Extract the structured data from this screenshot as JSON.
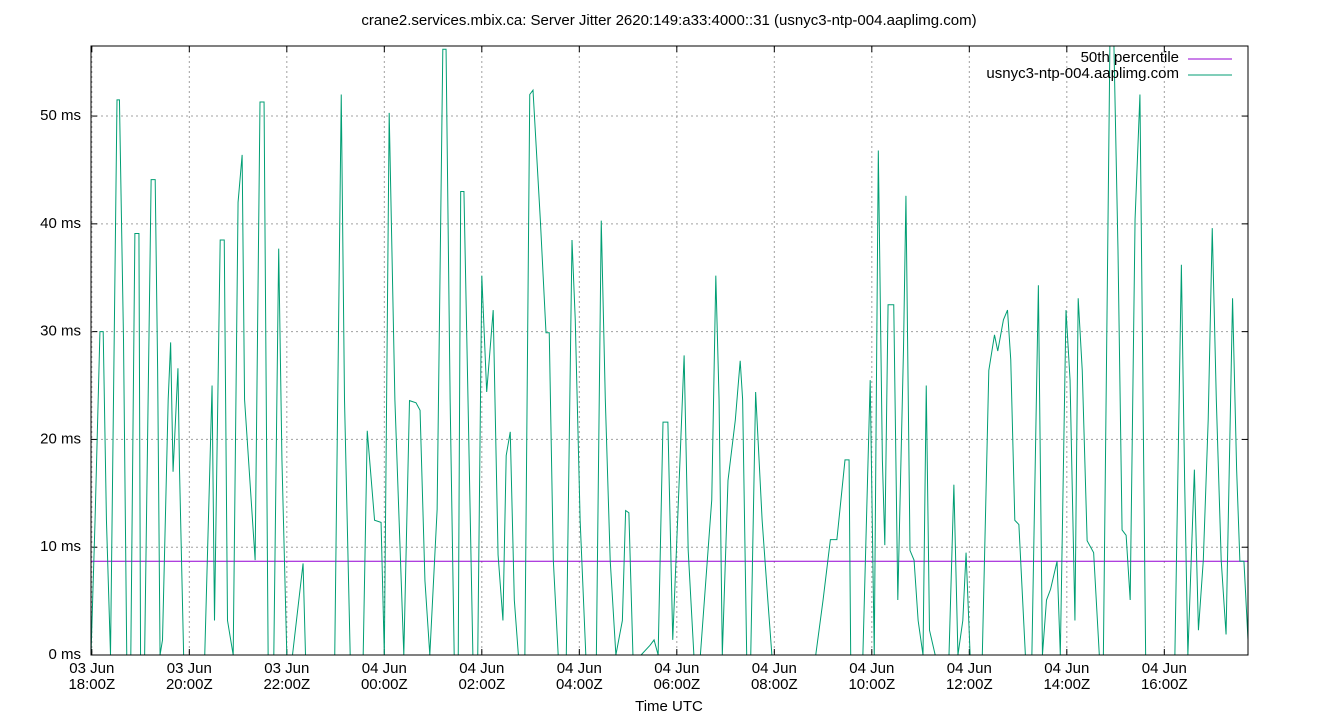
{
  "chart_data": {
    "type": "line",
    "title": "crane2.services.mbix.ca: Server Jitter 2620:149:a33:4000::31 (usnyc3-ntp-004.aaplimg.com)",
    "x_label": "Time UTC",
    "xlim": [
      "03 Jun 17:59Z",
      "04 Jun 17:43Z"
    ],
    "xticks": [
      "03 Jun 18:00Z",
      "03 Jun 20:00Z",
      "03 Jun 22:00Z",
      "04 Jun 00:00Z",
      "04 Jun 02:00Z",
      "04 Jun 04:00Z",
      "04 Jun 06:00Z",
      "04 Jun 08:00Z",
      "04 Jun 10:00Z",
      "04 Jun 12:00Z",
      "04 Jun 14:00Z",
      "04 Jun 16:00Z"
    ],
    "ylim": [
      0,
      56.5
    ],
    "yticks": [
      {
        "value": 0,
        "label": "0 ms"
      },
      {
        "value": 10,
        "label": "10 ms"
      },
      {
        "value": 20,
        "label": "20 ms"
      },
      {
        "value": 30,
        "label": "30 ms"
      },
      {
        "value": 40,
        "label": "40 ms"
      },
      {
        "value": 50,
        "label": "50 ms"
      }
    ],
    "grid": true,
    "legend": "top-right",
    "series": [
      {
        "name": "50th percentile",
        "color": "#9400d3",
        "x": [
          "03 Jun 17:59Z",
          "04 Jun 17:43Z"
        ],
        "values": [
          8.7,
          8.7
        ]
      },
      {
        "name": "usnyc3-ntp-004.aaplimg.com",
        "color": "#009e73",
        "x": [
          "03 Jun 17:59Z",
          "03 Jun 18:04Z",
          "03 Jun 18:10Z",
          "03 Jun 18:14Z",
          "03 Jun 18:18Z",
          "03 Jun 18:23Z",
          "03 Jun 18:31Z",
          "03 Jun 18:34Z",
          "03 Jun 18:39Z",
          "03 Jun 18:43Z",
          "03 Jun 18:48Z",
          "03 Jun 18:53Z",
          "03 Jun 18:58Z",
          "03 Jun 19:00Z",
          "03 Jun 19:05Z",
          "03 Jun 19:13Z",
          "03 Jun 19:18Z",
          "03 Jun 19:21Z",
          "03 Jun 19:24Z",
          "03 Jun 19:27Z",
          "03 Jun 19:34Z",
          "03 Jun 19:37Z",
          "03 Jun 19:40Z",
          "03 Jun 19:46Z",
          "03 Jun 19:48Z",
          "03 Jun 19:53Z",
          "03 Jun 20:19Z",
          "03 Jun 20:28Z",
          "03 Jun 20:31Z",
          "03 Jun 20:38Z",
          "03 Jun 20:43Z",
          "03 Jun 20:47Z",
          "03 Jun 20:54Z",
          "03 Jun 21:00Z",
          "03 Jun 21:05Z",
          "03 Jun 21:08Z",
          "03 Jun 21:21Z",
          "03 Jun 21:27Z",
          "03 Jun 21:32Z",
          "03 Jun 21:37Z",
          "03 Jun 21:44Z",
          "03 Jun 21:50Z",
          "03 Jun 21:54Z",
          "03 Jun 22:00Z",
          "03 Jun 22:07Z",
          "03 Jun 22:20Z",
          "03 Jun 22:23Z",
          "03 Jun 22:59Z",
          "03 Jun 23:07Z",
          "03 Jun 23:11Z",
          "03 Jun 23:18Z",
          "03 Jun 23:34Z",
          "03 Jun 23:39Z",
          "03 Jun 23:48Z",
          "03 Jun 23:56Z",
          "04 Jun 00:00Z",
          "04 Jun 00:06Z",
          "04 Jun 00:13Z",
          "04 Jun 00:24Z",
          "04 Jun 00:31Z",
          "04 Jun 00:39Z",
          "04 Jun 00:44Z",
          "04 Jun 00:50Z",
          "04 Jun 00:56Z",
          "04 Jun 01:05Z",
          "04 Jun 01:12Z",
          "04 Jun 01:16Z",
          "04 Jun 01:21Z",
          "04 Jun 01:26Z",
          "04 Jun 01:31Z",
          "04 Jun 01:34Z",
          "04 Jun 01:38Z",
          "04 Jun 01:43Z",
          "04 Jun 01:49Z",
          "04 Jun 01:55Z",
          "04 Jun 02:00Z",
          "04 Jun 02:06Z",
          "04 Jun 02:14Z",
          "04 Jun 02:20Z",
          "04 Jun 02:26Z",
          "04 Jun 02:30Z",
          "04 Jun 02:35Z",
          "04 Jun 02:40Z",
          "04 Jun 02:45Z",
          "04 Jun 02:53Z",
          "04 Jun 02:59Z",
          "04 Jun 03:03Z",
          "04 Jun 03:12Z",
          "04 Jun 03:19Z",
          "04 Jun 03:23Z",
          "04 Jun 03:28Z",
          "04 Jun 03:34Z",
          "04 Jun 03:44Z",
          "04 Jun 03:51Z",
          "04 Jun 03:55Z",
          "04 Jun 04:01Z",
          "04 Jun 04:08Z",
          "04 Jun 04:21Z",
          "04 Jun 04:27Z",
          "04 Jun 04:32Z",
          "04 Jun 04:38Z",
          "04 Jun 04:45Z",
          "04 Jun 04:53Z",
          "04 Jun 04:57Z",
          "04 Jun 05:01Z",
          "04 Jun 05:06Z",
          "04 Jun 05:16Z",
          "04 Jun 05:27Z",
          "04 Jun 05:32Z",
          "04 Jun 05:37Z",
          "04 Jun 05:43Z",
          "04 Jun 05:49Z",
          "04 Jun 05:55Z",
          "04 Jun 06:01Z",
          "04 Jun 06:09Z",
          "04 Jun 06:14Z",
          "04 Jun 06:21Z",
          "04 Jun 06:29Z",
          "04 Jun 06:43Z",
          "04 Jun 06:48Z",
          "04 Jun 06:52Z",
          "04 Jun 06:56Z",
          "04 Jun 07:03Z",
          "04 Jun 07:12Z",
          "04 Jun 07:18Z",
          "04 Jun 07:21Z",
          "04 Jun 07:26Z",
          "04 Jun 07:31Z",
          "04 Jun 07:37Z",
          "04 Jun 07:45Z",
          "04 Jun 07:52Z",
          "04 Jun 07:57Z",
          "04 Jun 08:05Z",
          "04 Jun 08:51Z",
          "04 Jun 09:00Z",
          "04 Jun 09:09Z",
          "04 Jun 09:17Z",
          "04 Jun 09:27Z",
          "04 Jun 09:32Z",
          "04 Jun 09:34Z",
          "04 Jun 09:49Z",
          "04 Jun 09:58Z",
          "04 Jun 10:03Z",
          "04 Jun 10:08Z",
          "04 Jun 10:13Z",
          "04 Jun 10:16Z",
          "04 Jun 10:20Z",
          "04 Jun 10:27Z",
          "04 Jun 10:32Z",
          "04 Jun 10:39Z",
          "04 Jun 10:42Z",
          "04 Jun 10:47Z",
          "04 Jun 10:52Z",
          "04 Jun 10:57Z",
          "04 Jun 11:03Z",
          "04 Jun 11:07Z",
          "04 Jun 11:11Z",
          "04 Jun 11:18Z",
          "04 Jun 11:35Z",
          "04 Jun 11:41Z",
          "04 Jun 11:46Z",
          "04 Jun 11:52Z",
          "04 Jun 11:56Z",
          "04 Jun 12:01Z",
          "04 Jun 12:16Z",
          "04 Jun 12:24Z",
          "04 Jun 12:31Z",
          "04 Jun 12:35Z",
          "04 Jun 12:42Z",
          "04 Jun 12:47Z",
          "04 Jun 12:51Z",
          "04 Jun 12:56Z",
          "04 Jun 13:01Z",
          "04 Jun 13:09Z",
          "04 Jun 13:17Z",
          "04 Jun 13:25Z",
          "04 Jun 13:30Z",
          "04 Jun 13:35Z",
          "04 Jun 13:40Z",
          "04 Jun 13:48Z",
          "04 Jun 13:52Z",
          "04 Jun 13:59Z",
          "04 Jun 14:04Z",
          "04 Jun 14:10Z",
          "04 Jun 14:14Z",
          "04 Jun 14:19Z",
          "04 Jun 14:25Z",
          "04 Jun 14:33Z",
          "04 Jun 14:40Z",
          "04 Jun 14:45Z",
          "04 Jun 14:53Z",
          "04 Jun 14:58Z",
          "04 Jun 15:03Z",
          "04 Jun 15:08Z",
          "04 Jun 15:13Z",
          "04 Jun 15:18Z",
          "04 Jun 15:24Z",
          "04 Jun 15:30Z",
          "04 Jun 15:37Z",
          "04 Jun 15:44Z",
          "04 Jun 16:13Z",
          "04 Jun 16:21Z",
          "04 Jun 16:25Z",
          "04 Jun 16:29Z",
          "04 Jun 16:37Z",
          "04 Jun 16:42Z",
          "04 Jun 16:48Z",
          "04 Jun 16:54Z",
          "04 Jun 16:59Z",
          "04 Jun 17:04Z",
          "04 Jun 17:10Z",
          "04 Jun 17:16Z",
          "04 Jun 17:24Z",
          "04 Jun 17:29Z",
          "04 Jun 17:33Z",
          "04 Jun 17:38Z",
          "04 Jun 17:43Z"
        ],
        "values": [
          0,
          12.5,
          30,
          30,
          12.5,
          0,
          51.5,
          51.5,
          29.3,
          0,
          0,
          39.1,
          39.1,
          0,
          0,
          44.1,
          44.1,
          26.5,
          0,
          1.4,
          23.7,
          29,
          17,
          26.6,
          17,
          0,
          0,
          25,
          3.2,
          38.5,
          38.5,
          3.2,
          0,
          42,
          46.4,
          23.7,
          8.8,
          51.3,
          51.3,
          0,
          0,
          37.7,
          18.1,
          0,
          0,
          8.5,
          0,
          0,
          52,
          23.7,
          0,
          0,
          20.8,
          12.5,
          12.3,
          0,
          50.3,
          23.7,
          0,
          23.6,
          23.4,
          22.7,
          6.9,
          0,
          13.5,
          56.2,
          56.2,
          23.7,
          0,
          0,
          43,
          43,
          23.7,
          0,
          0,
          35.2,
          24.4,
          32,
          9.3,
          3.2,
          18.5,
          20.7,
          5.1,
          0,
          0,
          52,
          52.4,
          40.4,
          29.9,
          29.9,
          8.8,
          0,
          0,
          38.5,
          31.1,
          12.5,
          0,
          0,
          40.3,
          23.7,
          8.8,
          0,
          3.2,
          13.4,
          13.2,
          0,
          0,
          0.9,
          1.4,
          0,
          21.6,
          21.6,
          1.4,
          12.5,
          27.8,
          9.7,
          0,
          0,
          14.4,
          35.2,
          23.7,
          0,
          16.2,
          21.8,
          27.3,
          23.7,
          0,
          0,
          24.4,
          12.5,
          5.1,
          0,
          0,
          0,
          5.1,
          10.7,
          10.7,
          18.1,
          18.1,
          0,
          0,
          25.5,
          0,
          46.8,
          18.1,
          10.2,
          32.5,
          32.5,
          5.1,
          28.4,
          42.6,
          9.7,
          8.8,
          3.2,
          0,
          25,
          2.3,
          0,
          0,
          15.8,
          0,
          3.2,
          9.5,
          0,
          0,
          26.4,
          29.7,
          28.2,
          31.1,
          32,
          27.4,
          12.5,
          12.1,
          0,
          0,
          34.3,
          0,
          5.1,
          6.1,
          8.7,
          0,
          32,
          25.5,
          3.2,
          33.1,
          26.4,
          10.6,
          9.5,
          0,
          0,
          56.5,
          56.5,
          37.5,
          11.6,
          11.1,
          5.1,
          40.4,
          52,
          0,
          0,
          0,
          36.2,
          16.2,
          0,
          17.2,
          2.3,
          8.8,
          21.8,
          39.6,
          23.7,
          8.8,
          1.9,
          33.1,
          17.2,
          8.7,
          8.7,
          1.4
        ]
      }
    ]
  }
}
